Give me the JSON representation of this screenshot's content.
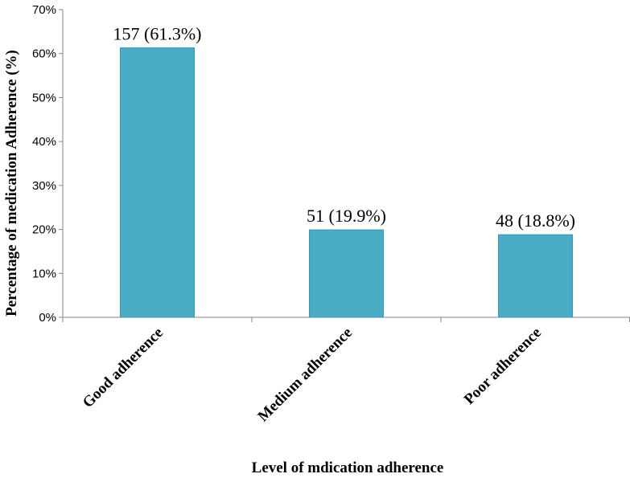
{
  "chart_data": {
    "type": "bar",
    "categories": [
      "Good adherence",
      "Medium adherence",
      "Poor adherence"
    ],
    "values": [
      61.3,
      19.9,
      18.8
    ],
    "data_labels": [
      "157 (61.3%)",
      "51 (19.9%)",
      "48 (18.8%)"
    ],
    "y_ticks": [
      "0%",
      "10%",
      "20%",
      "30%",
      "40%",
      "50%",
      "60%",
      "70%"
    ],
    "ylim": [
      0,
      70
    ],
    "xlabel": "Level of mdication  adherence",
    "ylabel": "Percentage of medication Adherence (%)",
    "grid": false,
    "legend": "none",
    "bar_color": "#4bacc6",
    "bar_edge_color": "#3a97b0"
  }
}
